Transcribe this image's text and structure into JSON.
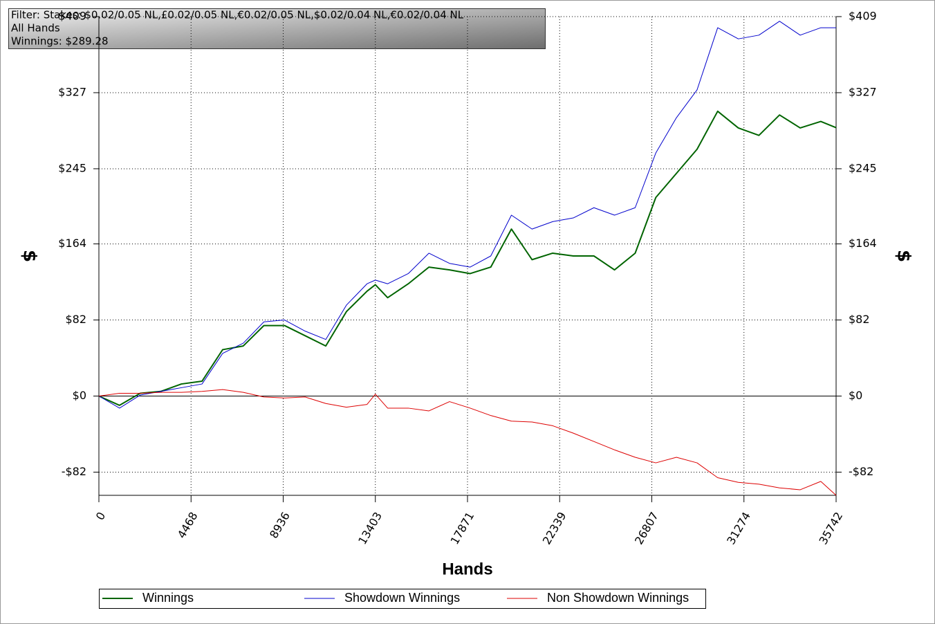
{
  "chart_data": {
    "type": "line",
    "title_lines": [
      "Filter: Stakes: $0.02/0.05 NL,£0.02/0.05 NL,€0.02/0.05 NL,$0.02/0.04 NL,€0.02/0.04 NL",
      "All Hands",
      "Winnings: $289.28"
    ],
    "xlabel": "Hands",
    "ylabel": "$",
    "y2label": "$",
    "x": [
      0,
      1000,
      2000,
      3000,
      4000,
      5000,
      6000,
      7000,
      8000,
      9000,
      10000,
      11000,
      12000,
      13000,
      13403,
      14000,
      15000,
      16000,
      17000,
      18000,
      19000,
      20000,
      21000,
      22000,
      23000,
      24000,
      25000,
      26000,
      27000,
      28000,
      29000,
      30000,
      31000,
      32000,
      33000,
      34000,
      35000,
      35742
    ],
    "series": [
      {
        "name": "Winnings",
        "color": "#006400",
        "width": 2,
        "values": [
          0,
          -10,
          3,
          5,
          13,
          16,
          50,
          54,
          76,
          76,
          65,
          54,
          91,
          113,
          120,
          106,
          121,
          139,
          136,
          132,
          139,
          180,
          147,
          154,
          151,
          151,
          136,
          154,
          214,
          240,
          266,
          307,
          289,
          281,
          303,
          289,
          296,
          289.28
        ]
      },
      {
        "name": "Showdown Winnings",
        "color": "#0000cc",
        "width": 1,
        "values": [
          0,
          -13,
          1,
          5,
          9,
          13,
          46,
          57,
          80,
          82,
          70,
          61,
          98,
          121,
          125,
          121,
          132,
          154,
          143,
          139,
          151,
          195,
          180,
          188,
          192,
          203,
          195,
          203,
          262,
          300,
          330,
          397,
          385,
          389,
          404,
          389,
          397,
          397
        ]
      },
      {
        "name": "Non Showdown Winnings",
        "color": "#dd0000",
        "width": 1,
        "values": [
          0,
          3,
          3,
          4,
          4,
          5,
          7,
          4,
          -1,
          -2,
          -1,
          -8,
          -12,
          -9,
          2,
          -13,
          -13,
          -16,
          -6,
          -13,
          -21,
          -27,
          -28,
          -32,
          -40,
          -49,
          -58,
          -66,
          -72,
          -66,
          -72,
          -88,
          -93,
          -95,
          -99,
          -101,
          -92,
          -107
        ]
      }
    ],
    "xlim": [
      0,
      35742
    ],
    "xticks": [
      0,
      4468,
      8936,
      13403,
      17871,
      22339,
      26807,
      31274,
      35742
    ],
    "ylim": [
      -107,
      409
    ],
    "yticks": [
      {
        "value": -82,
        "label": "-$82"
      },
      {
        "value": 0,
        "label": "$0"
      },
      {
        "value": 82,
        "label": "$82"
      },
      {
        "value": 164,
        "label": "$164"
      },
      {
        "value": 245,
        "label": "$245"
      },
      {
        "value": 327,
        "label": "$327"
      },
      {
        "value": 409,
        "label": "$409"
      }
    ],
    "y2lim": [
      -107,
      409
    ],
    "y2ticks": [
      {
        "value": -82,
        "label": "-$82"
      },
      {
        "value": 0,
        "label": "$0"
      },
      {
        "value": 82,
        "label": "$82"
      },
      {
        "value": 164,
        "label": "$164"
      },
      {
        "value": 245,
        "label": "$245"
      },
      {
        "value": 327,
        "label": "$327"
      },
      {
        "value": 409,
        "label": "$409"
      }
    ],
    "grid": true
  }
}
